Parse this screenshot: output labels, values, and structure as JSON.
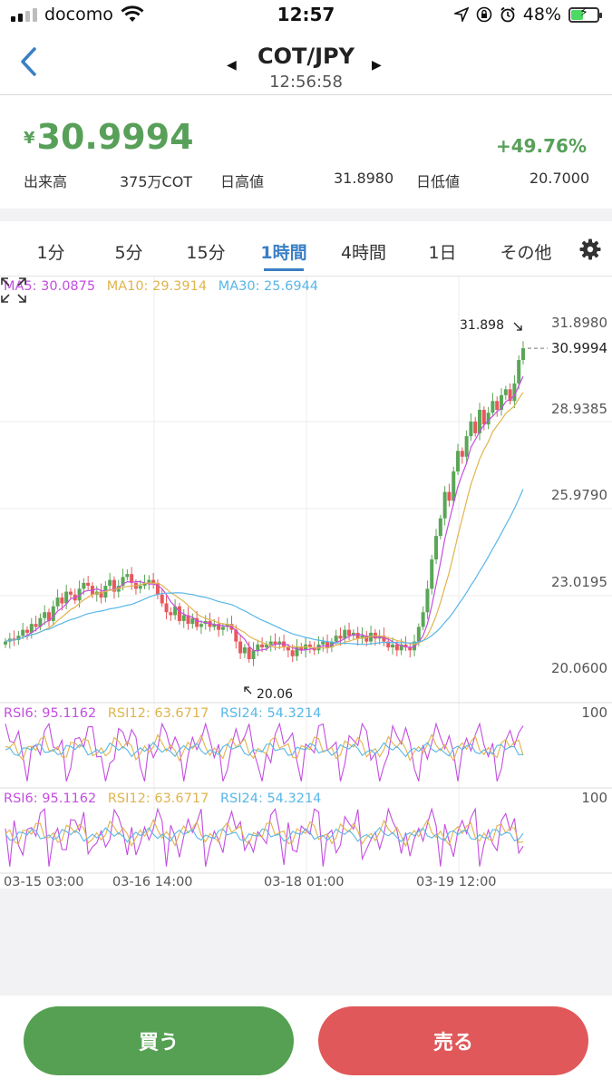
{
  "status": {
    "carrier": "docomo",
    "time": "12:57",
    "battery": "48%",
    "battery_level": 0.48
  },
  "header": {
    "pair": "COT/JPY",
    "time": "12:56:58"
  },
  "quote": {
    "currency_symbol": "¥",
    "price": "30.9994",
    "change": "+49.76%",
    "volume_label": "出来高",
    "volume_value": "375万COT",
    "high_label": "日高値",
    "high_value": "31.8980",
    "low_label": "日低値",
    "low_value": "20.7000"
  },
  "tabs": {
    "items": [
      "1分",
      "5分",
      "15分",
      "1時間",
      "4時間",
      "1日",
      "その他"
    ],
    "active": "1時間"
  },
  "legend": {
    "ma5": "MA5: 30.0875",
    "ma10": "MA10: 29.3914",
    "ma30": "MA30: 25.6944",
    "rsi_panels": [
      {
        "rsi6": "RSI6: 95.1162",
        "rsi12": "RSI12: 63.6717",
        "rsi24": "RSI24: 54.3214",
        "max": "100"
      },
      {
        "rsi6": "RSI6: 95.1162",
        "rsi12": "RSI12: 63.6717",
        "rsi24": "RSI24: 54.3214",
        "max": "100"
      }
    ]
  },
  "colors": {
    "up": "#5aa657",
    "down": "#e8585c",
    "ma5": "#c44ee0",
    "ma10": "#e0b44e",
    "ma30": "#58b6e8",
    "accent": "#3a7fc4"
  },
  "chart_data": {
    "type": "candlestick",
    "ylabels": [
      "31.8980",
      "28.9385",
      "25.9790",
      "23.0195",
      "20.0600"
    ],
    "ylim": [
      20.06,
      31.898
    ],
    "current_price_label": "30.9994",
    "max_marker": "31.898",
    "min_marker": "20.06",
    "x_ticks": [
      "03-15 03:00",
      "03-16 14:00",
      "03-18 01:00",
      "03-19 12:00"
    ],
    "series": [
      {
        "name": "price",
        "values": [
          21.0,
          21.1,
          21.05,
          21.2,
          21.4,
          21.3,
          21.6,
          21.5,
          21.8,
          22.0,
          21.7,
          22.2,
          22.5,
          22.3,
          22.7,
          22.6,
          22.4,
          22.8,
          23.0,
          22.9,
          22.6,
          22.7,
          22.5,
          22.9,
          23.1,
          22.7,
          22.9,
          23.2,
          23.3,
          23.0,
          22.8,
          22.9,
          23.0,
          23.1,
          23.0,
          22.6,
          22.3,
          22.0,
          21.9,
          22.2,
          21.7,
          21.9,
          21.6,
          21.8,
          21.5,
          21.6,
          21.7,
          21.5,
          21.6,
          21.4,
          21.5,
          21.6,
          21.4,
          21.0,
          20.6,
          20.8,
          20.4,
          20.7,
          20.9,
          20.8,
          20.9,
          21.0,
          20.9,
          21.0,
          20.8,
          20.7,
          20.5,
          20.8,
          20.7,
          20.9,
          20.8,
          20.7,
          20.9,
          21.0,
          20.8,
          21.0,
          21.2,
          21.1,
          21.4,
          21.2,
          21.3,
          21.1,
          21.2,
          21.0,
          21.3,
          21.1,
          21.2,
          21.0,
          20.8,
          20.9,
          20.7,
          20.9,
          20.8,
          20.7,
          21.0,
          21.5,
          22.0,
          22.8,
          23.8,
          24.6,
          25.2,
          26.1,
          25.8,
          26.8,
          27.5,
          27.3,
          28.0,
          28.5,
          28.1,
          28.9,
          28.4,
          28.8,
          29.2,
          28.9,
          29.4,
          29.6,
          29.2,
          29.8,
          30.6,
          31.0
        ]
      }
    ]
  }
}
